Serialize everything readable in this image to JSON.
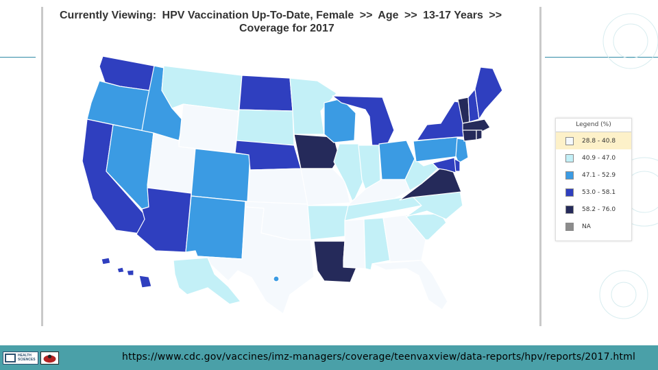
{
  "header": {
    "prefix": "Currently Viewing:",
    "topic": "HPV Vaccination Up-To-Date, Female",
    "sep1": ">>",
    "dimension": "Age",
    "sep2": ">>",
    "group": "13-17 Years",
    "sep3": ">>",
    "subtitle": "Coverage for 2017"
  },
  "legend": {
    "title": "Legend (%)",
    "items": [
      {
        "label": "28.8 - 40.8",
        "color": "#f5f9fd"
      },
      {
        "label": "40.9 - 47.0",
        "color": "#c3f0f7"
      },
      {
        "label": "47.1 - 52.9",
        "color": "#3b9be3"
      },
      {
        "label": "53.0 - 58.1",
        "color": "#2f3fbf"
      },
      {
        "label": "58.2 - 76.0",
        "color": "#252a5a"
      },
      {
        "label": "NA",
        "color": "#8c8c8c"
      }
    ]
  },
  "map_data": {
    "classes": {
      "c1": "#f5f9fd",
      "c2": "#c3f0f7",
      "c3": "#3b9be3",
      "c4": "#2f3fbf",
      "c5": "#252a5a"
    },
    "states": {
      "WA": "c4",
      "OR": "c3",
      "CA": "c4",
      "ID": "c3",
      "NV": "c3",
      "MT": "c2",
      "WY": "c1",
      "UT": "c1",
      "AZ": "c4",
      "CO": "c3",
      "NM": "c3",
      "ND": "c4",
      "SD": "c2",
      "NE": "c4",
      "KS": "c1",
      "OK": "c1",
      "TX": "c1",
      "MN": "c2",
      "IA": "c5",
      "MO": "c1",
      "AR": "c2",
      "LA": "c5",
      "WI": "c3",
      "IL": "c2",
      "MI": "c4",
      "IN": "c2",
      "OH": "c3",
      "KY": "c1",
      "TN": "c2",
      "MS": "c1",
      "AL": "c2",
      "GA": "c1",
      "FL": "c1",
      "SC": "c2",
      "NC": "c2",
      "VA": "c5",
      "WV": "c2",
      "PA": "c3",
      "NY": "c4",
      "ME": "c4",
      "VT": "c5",
      "NH": "c4",
      "MA": "c5",
      "CT": "c5",
      "RI": "c5",
      "NJ": "c3",
      "DE": "c4",
      "MD": "c4",
      "AK": "c2",
      "HI": "c4"
    }
  },
  "footer": {
    "logo_text_1": "HEALTH",
    "logo_text_2": "SCIENCES",
    "url": "https://www.cdc.gov/vaccines/imz-managers/coverage/teenvaxview/data-reports/hpv/reports/2017.html"
  }
}
